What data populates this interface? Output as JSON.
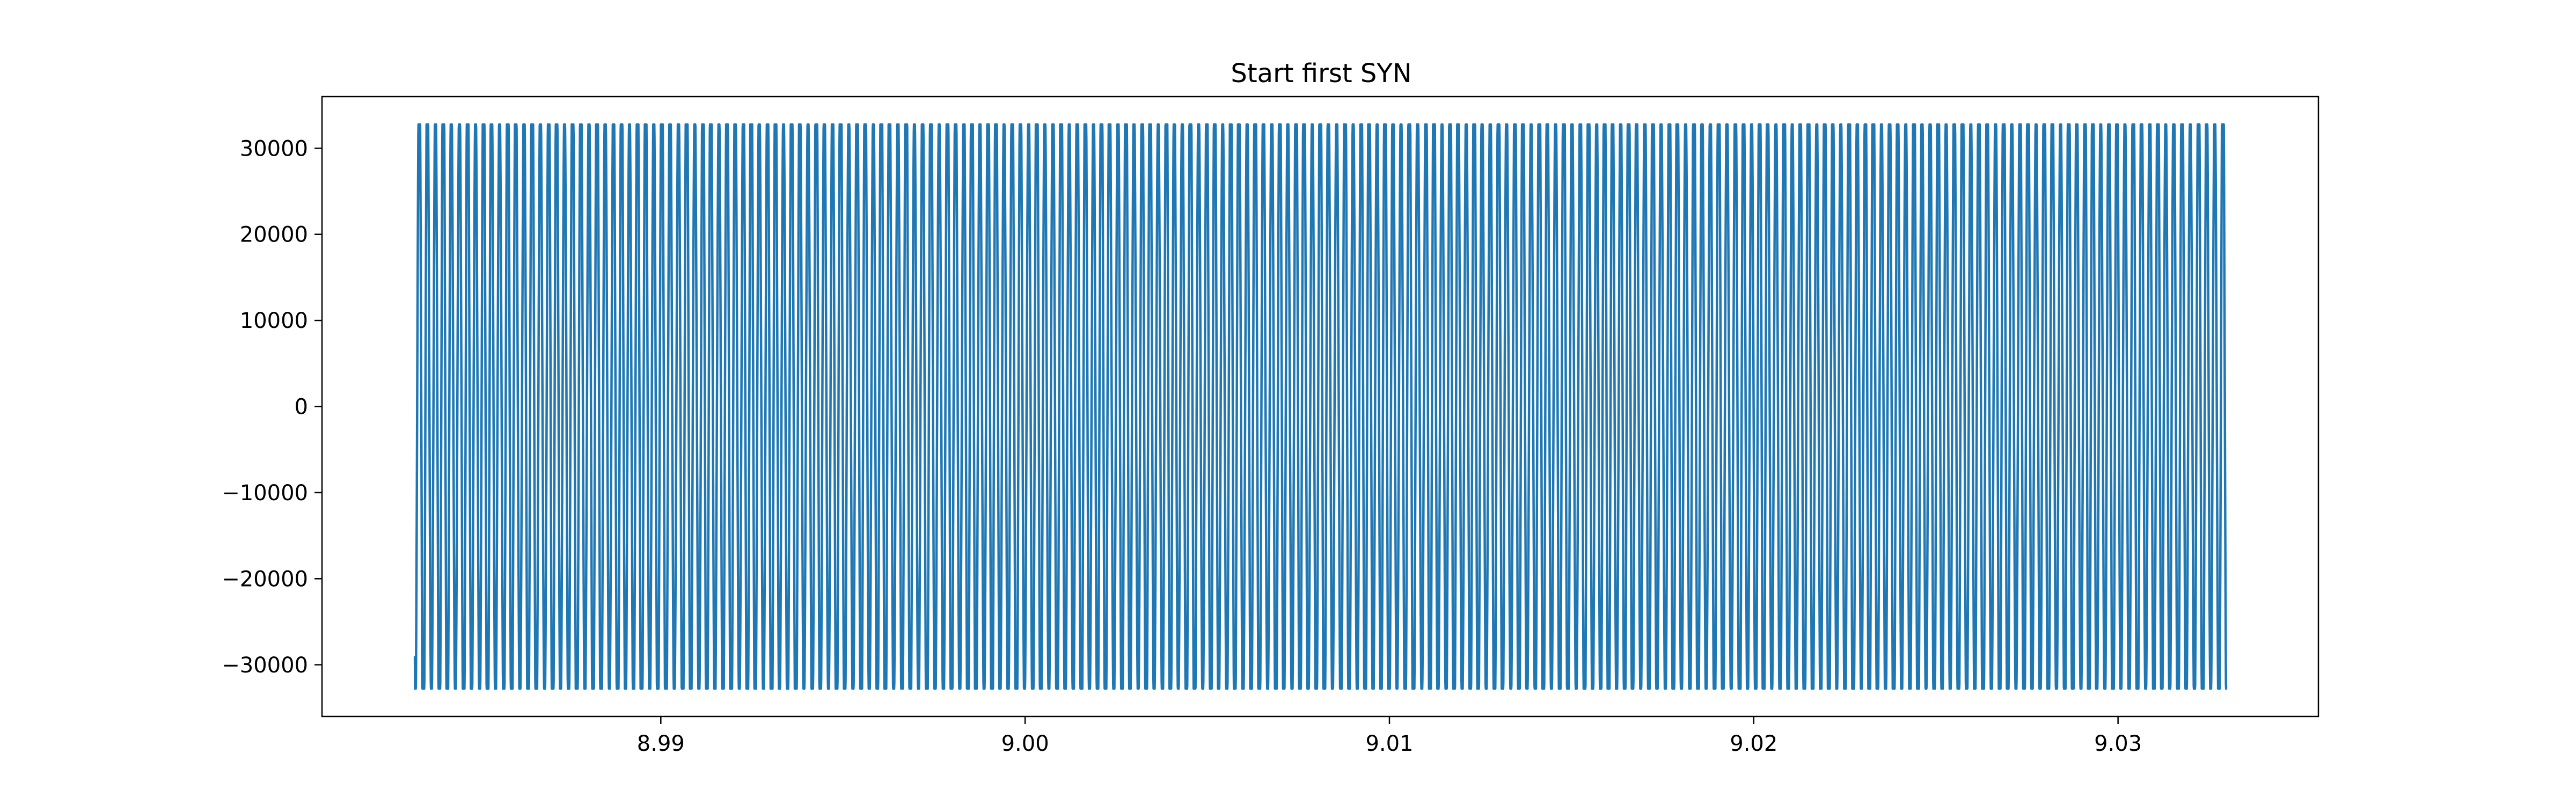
{
  "chart_data": {
    "type": "line",
    "title": "Start first SYN",
    "xlabel": "",
    "ylabel": "",
    "xlim": [
      8.9807,
      9.0355
    ],
    "ylim": [
      -36000,
      36000
    ],
    "x_ticks": [
      8.99,
      9.0,
      9.01,
      9.02,
      9.03
    ],
    "x_tick_labels": [
      "8.99",
      "9.00",
      "9.01",
      "9.02",
      "9.03"
    ],
    "y_ticks": [
      -30000,
      -20000,
      -10000,
      0,
      10000,
      20000,
      30000
    ],
    "y_tick_labels": [
      "−30000",
      "−20000",
      "−10000",
      "0",
      "10000",
      "20000",
      "30000"
    ],
    "grid": false,
    "legend": "none",
    "line_color": "#1f77b4",
    "series": [
      {
        "x_start": 8.98325,
        "x_end": 9.03299,
        "cycles": 223,
        "amplitude_max": 32767,
        "amplitude_min": -32768,
        "first_value": -29000,
        "last_value": -32768,
        "description_note": ""
      }
    ]
  }
}
